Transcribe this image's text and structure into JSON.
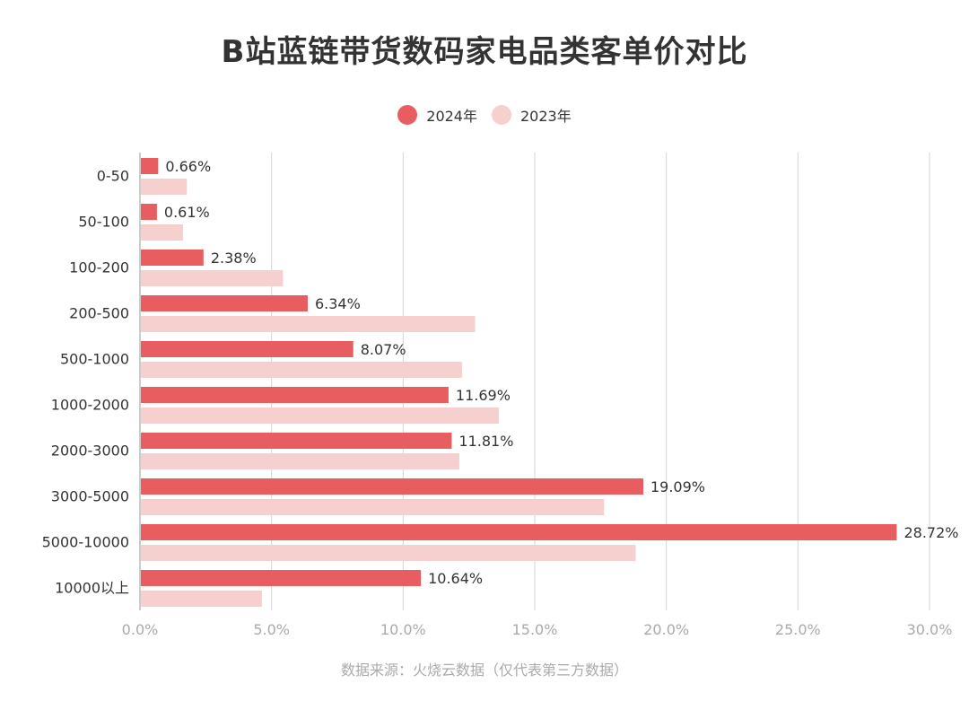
{
  "chart_data": {
    "type": "bar",
    "orientation": "horizontal",
    "title": "B站蓝链带货数码家电品类客单价对比",
    "categories": [
      "0-50",
      "50-100",
      "100-200",
      "200-500",
      "500-1000",
      "1000-2000",
      "2000-3000",
      "3000-5000",
      "5000-10000",
      "10000以上"
    ],
    "series": [
      {
        "name": "2024年",
        "color": "#E85D60",
        "values": [
          0.66,
          0.61,
          2.38,
          6.34,
          8.07,
          11.69,
          11.81,
          19.09,
          28.72,
          10.64
        ],
        "labels": [
          "0.66%",
          "0.61%",
          "2.38%",
          "6.34%",
          "8.07%",
          "11.69%",
          "11.81%",
          "19.09%",
          "28.72%",
          "10.64%"
        ]
      },
      {
        "name": "2023年",
        "color": "#F6CFCF",
        "values": [
          1.75,
          1.6,
          5.4,
          12.7,
          12.2,
          13.6,
          12.1,
          17.6,
          18.8,
          4.6
        ]
      }
    ],
    "xlim": [
      0,
      30
    ],
    "xticks": [
      "0.0%",
      "5.0%",
      "10.0%",
      "15.0%",
      "20.0%",
      "25.0%",
      "30.0%"
    ],
    "grid": true,
    "legend_position": "top-center"
  },
  "source_note": "数据来源：火烧云数据（仅代表第三方数据）"
}
